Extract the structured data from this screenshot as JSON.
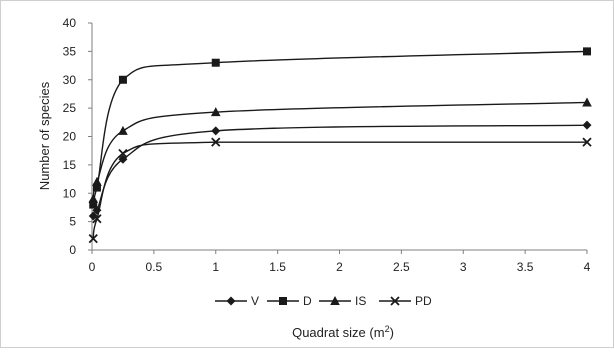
{
  "chart_data": {
    "type": "line",
    "title": "",
    "xlabel": "Quadrat size (m",
    "xlabel_superscript": "2",
    "xlabel_close": ")",
    "ylabel": "Number of species",
    "xlim": [
      0,
      4
    ],
    "ylim": [
      0,
      40
    ],
    "x_ticks": [
      {
        "value": 0,
        "label": "0"
      },
      {
        "value": 0.5,
        "label": "0.5"
      },
      {
        "value": 1,
        "label": "1"
      },
      {
        "value": 1.5,
        "label": "1.5"
      },
      {
        "value": 2,
        "label": "2"
      },
      {
        "value": 2.5,
        "label": "2.5"
      },
      {
        "value": 3,
        "label": "3"
      },
      {
        "value": 3.5,
        "label": "3.5"
      },
      {
        "value": 4,
        "label": "4"
      }
    ],
    "y_ticks": [
      {
        "value": 0,
        "label": "0"
      },
      {
        "value": 5,
        "label": "5"
      },
      {
        "value": 10,
        "label": "10"
      },
      {
        "value": 15,
        "label": "15"
      },
      {
        "value": 20,
        "label": "20"
      },
      {
        "value": 25,
        "label": "25"
      },
      {
        "value": 30,
        "label": "30"
      },
      {
        "value": 35,
        "label": "35"
      },
      {
        "value": 40,
        "label": "40"
      }
    ],
    "grid": false,
    "legend_position": "bottom",
    "line_color": "#1a1a1a",
    "series": [
      {
        "name": "V",
        "marker": "diamond",
        "points": [
          [
            0.01,
            6
          ],
          [
            0.04,
            7
          ],
          [
            0.25,
            16
          ],
          [
            1,
            21
          ],
          [
            4,
            22
          ]
        ]
      },
      {
        "name": "D",
        "marker": "square",
        "points": [
          [
            0.01,
            8
          ],
          [
            0.04,
            11
          ],
          [
            0.25,
            30
          ],
          [
            1,
            33
          ],
          [
            4,
            35
          ]
        ]
      },
      {
        "name": "IS",
        "marker": "triangle",
        "points": [
          [
            0.01,
            9
          ],
          [
            0.04,
            12
          ],
          [
            0.25,
            21
          ],
          [
            1,
            24.3
          ],
          [
            4,
            26
          ]
        ]
      },
      {
        "name": "PD",
        "marker": "cross",
        "points": [
          [
            0.01,
            2
          ],
          [
            0.04,
            5.5
          ],
          [
            0.25,
            17
          ],
          [
            1,
            19
          ],
          [
            4,
            19
          ]
        ]
      }
    ]
  }
}
